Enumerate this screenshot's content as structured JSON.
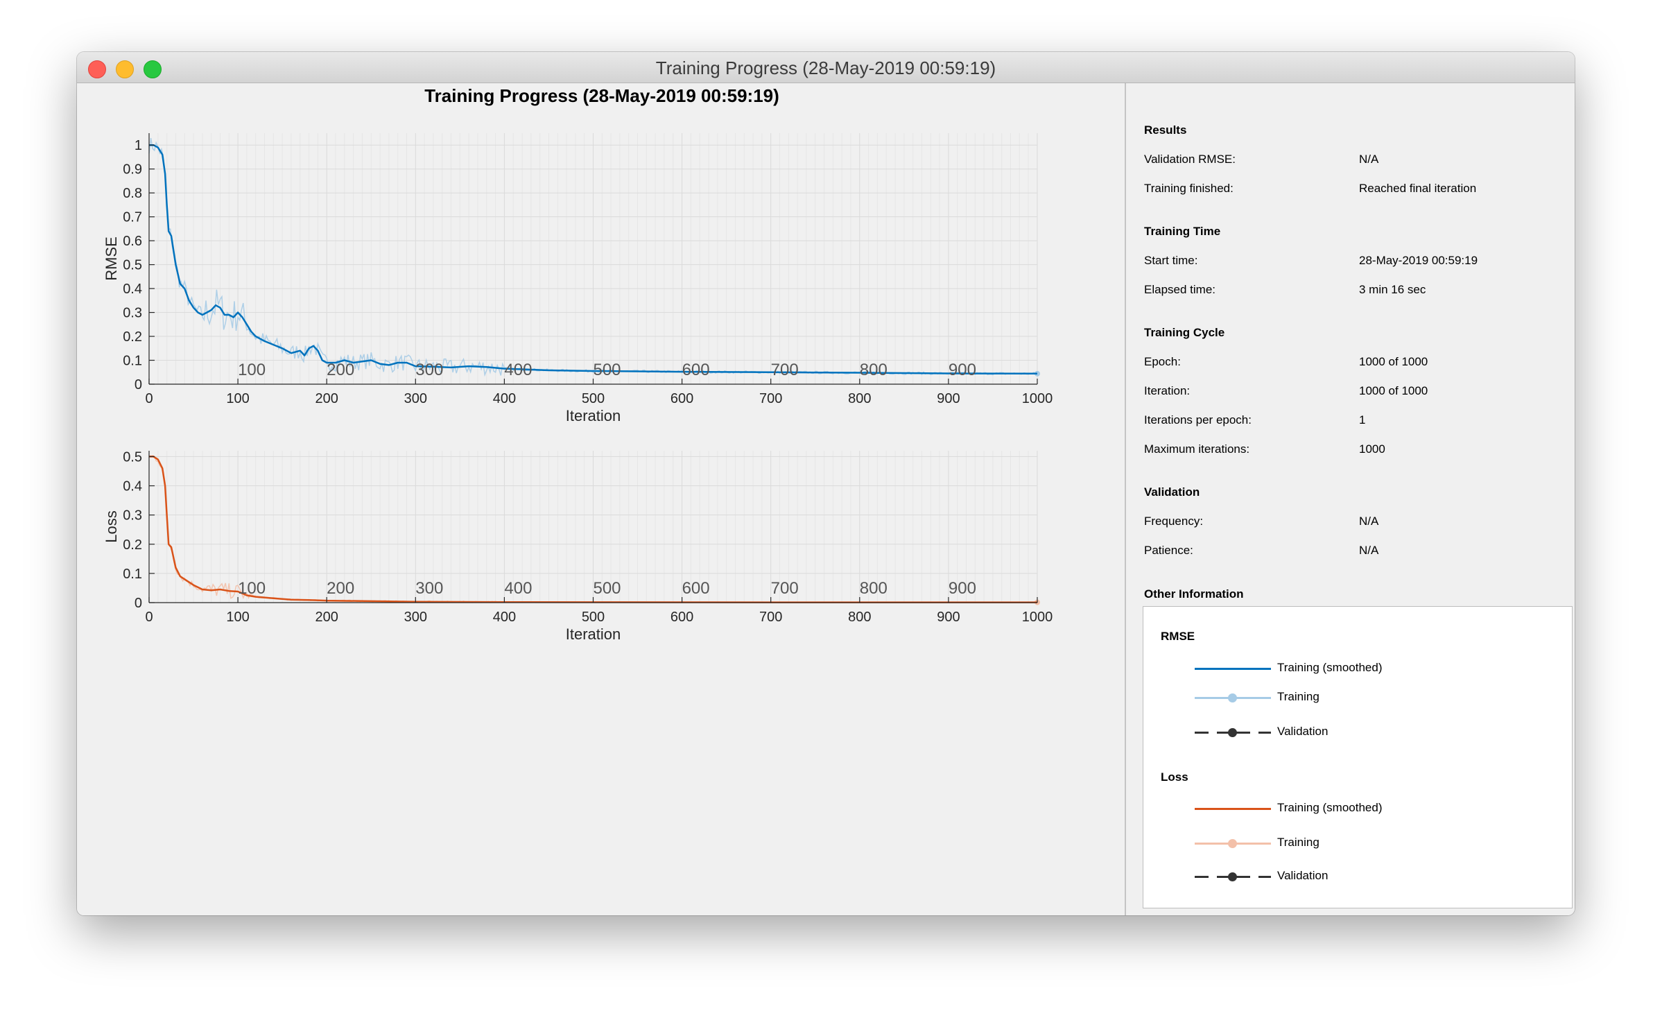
{
  "window": {
    "title": "Training Progress (28-May-2019 00:59:19)"
  },
  "plot_title": "Training Progress (28-May-2019 00:59:19)",
  "colors": {
    "rmse_smoothed": "#0072bd",
    "rmse_training": "#a6cbe6",
    "loss_smoothed": "#d95319",
    "loss_training": "#f3c0a9",
    "validation": "#333333"
  },
  "info": {
    "results": {
      "heading": "Results",
      "rows": [
        {
          "label": "Validation RMSE:",
          "value": "N/A"
        },
        {
          "label": "Training finished:",
          "value": "Reached final iteration"
        }
      ]
    },
    "training_time": {
      "heading": "Training Time",
      "rows": [
        {
          "label": "Start time:",
          "value": "28-May-2019 00:59:19"
        },
        {
          "label": "Elapsed time:",
          "value": "3 min 16 sec"
        }
      ]
    },
    "training_cycle": {
      "heading": "Training Cycle",
      "rows": [
        {
          "label": "Epoch:",
          "value": "1000 of 1000"
        },
        {
          "label": "Iteration:",
          "value": "1000 of 1000"
        },
        {
          "label": "Iterations per epoch:",
          "value": "1"
        },
        {
          "label": "Maximum iterations:",
          "value": "1000"
        }
      ]
    },
    "validation": {
      "heading": "Validation",
      "rows": [
        {
          "label": "Frequency:",
          "value": "N/A"
        },
        {
          "label": "Patience:",
          "value": "N/A"
        }
      ]
    },
    "other": {
      "heading": "Other Information"
    }
  },
  "legend": {
    "rmse": {
      "title": "RMSE",
      "items": [
        "Training (smoothed)",
        "Training",
        "Validation"
      ]
    },
    "loss": {
      "title": "Loss",
      "items": [
        "Training (smoothed)",
        "Training",
        "Validation"
      ]
    }
  },
  "chart_data": [
    {
      "type": "line",
      "ylabel": "RMSE",
      "xlabel": "Iteration",
      "xlim": [
        0,
        1000
      ],
      "ylim": [
        0,
        1.05
      ],
      "xticks": [
        0,
        100,
        200,
        300,
        400,
        500,
        600,
        700,
        800,
        900,
        1000
      ],
      "yticks": [
        0,
        0.1,
        0.2,
        0.3,
        0.4,
        0.5,
        0.6,
        0.7,
        0.8,
        0.9,
        1
      ],
      "epoch_labels": [
        "100",
        "200",
        "300",
        "400",
        "500",
        "600",
        "700",
        "800",
        "900"
      ],
      "grid": true,
      "series": [
        {
          "name": "Training (smoothed)",
          "x": [
            0,
            5,
            10,
            15,
            18,
            20,
            22,
            25,
            30,
            35,
            40,
            45,
            50,
            55,
            60,
            65,
            70,
            75,
            80,
            85,
            90,
            95,
            100,
            105,
            110,
            115,
            120,
            130,
            140,
            150,
            160,
            170,
            175,
            180,
            185,
            190,
            195,
            200,
            210,
            220,
            230,
            240,
            250,
            260,
            270,
            280,
            290,
            300,
            320,
            340,
            360,
            380,
            400,
            450,
            500,
            600,
            700,
            800,
            900,
            1000
          ],
          "y": [
            1.0,
            1.0,
            0.99,
            0.96,
            0.88,
            0.75,
            0.64,
            0.62,
            0.5,
            0.42,
            0.4,
            0.35,
            0.32,
            0.3,
            0.29,
            0.3,
            0.31,
            0.33,
            0.32,
            0.29,
            0.29,
            0.28,
            0.3,
            0.28,
            0.25,
            0.22,
            0.2,
            0.18,
            0.165,
            0.15,
            0.13,
            0.14,
            0.12,
            0.15,
            0.16,
            0.14,
            0.1,
            0.09,
            0.09,
            0.1,
            0.09,
            0.095,
            0.1,
            0.085,
            0.08,
            0.09,
            0.09,
            0.075,
            0.073,
            0.07,
            0.075,
            0.072,
            0.065,
            0.058,
            0.055,
            0.052,
            0.05,
            0.048,
            0.045,
            0.044
          ]
        }
      ]
    },
    {
      "type": "line",
      "ylabel": "Loss",
      "xlabel": "Iteration",
      "xlim": [
        0,
        1000
      ],
      "ylim": [
        0,
        0.52
      ],
      "xticks": [
        0,
        100,
        200,
        300,
        400,
        500,
        600,
        700,
        800,
        900,
        1000
      ],
      "yticks": [
        0,
        0.1,
        0.2,
        0.3,
        0.4,
        0.5
      ],
      "epoch_labels": [
        "100",
        "200",
        "300",
        "400",
        "500",
        "600",
        "700",
        "800",
        "900"
      ],
      "grid": true,
      "series": [
        {
          "name": "Training (smoothed)",
          "x": [
            0,
            5,
            10,
            15,
            18,
            20,
            22,
            25,
            30,
            35,
            40,
            50,
            60,
            70,
            80,
            90,
            100,
            110,
            120,
            140,
            160,
            180,
            200,
            250,
            300,
            400,
            500,
            600,
            700,
            800,
            900,
            1000
          ],
          "y": [
            0.5,
            0.5,
            0.49,
            0.46,
            0.4,
            0.3,
            0.2,
            0.19,
            0.12,
            0.09,
            0.08,
            0.06,
            0.045,
            0.042,
            0.045,
            0.04,
            0.038,
            0.025,
            0.02,
            0.015,
            0.01,
            0.009,
            0.007,
            0.005,
            0.003,
            0.002,
            0.0015,
            0.0012,
            0.001,
            0.001,
            0.001,
            0.001
          ]
        }
      ]
    }
  ]
}
